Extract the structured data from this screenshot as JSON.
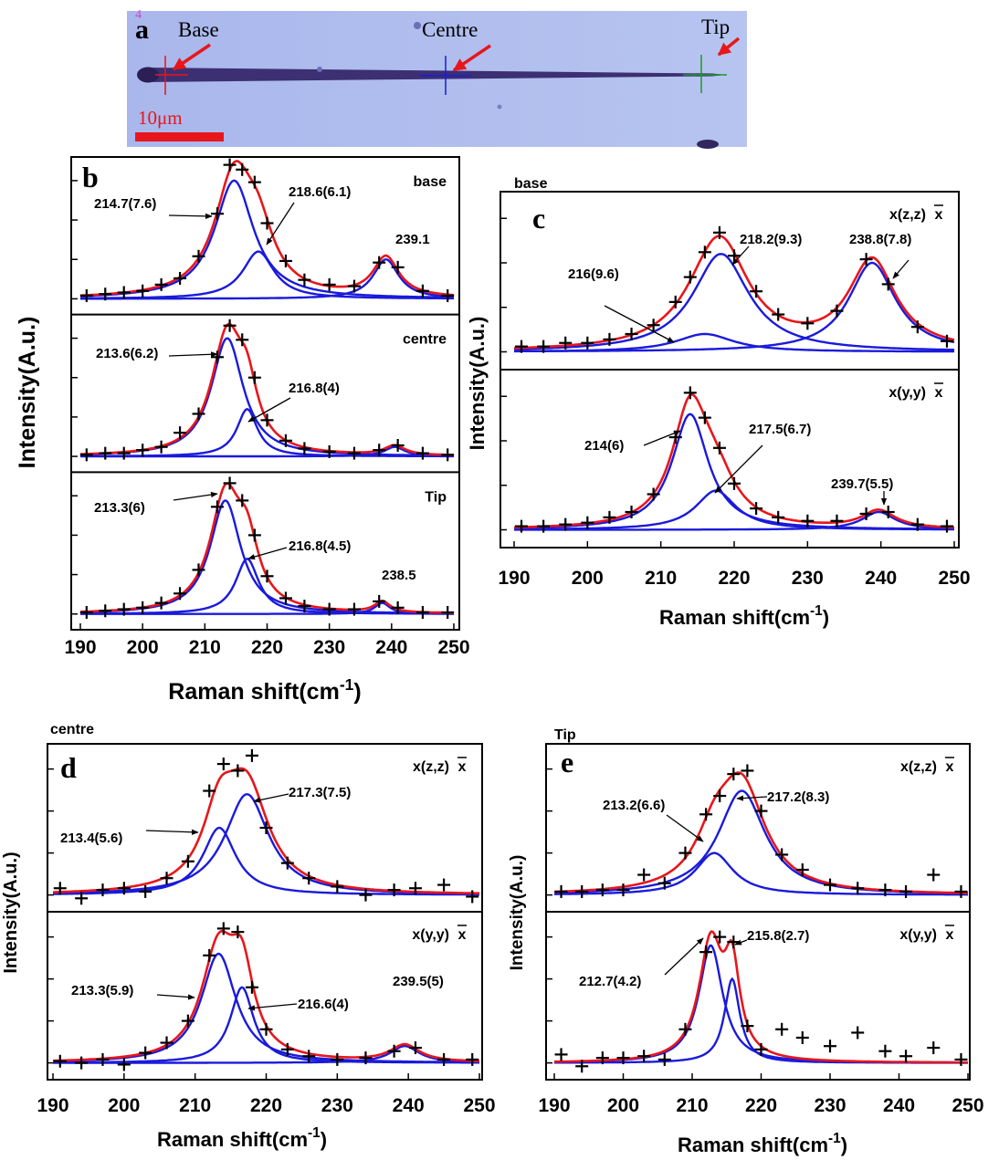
{
  "panel_a": {
    "label": "a",
    "mark": "4",
    "markers": [
      "Base",
      "Centre",
      "Tip"
    ],
    "scale_bar": "10μm"
  },
  "chart_data": [
    {
      "type": "line",
      "panel_label": "b",
      "ylabel": "Intensity(A.u.)",
      "xlabel": "Raman shift(cm",
      "xlabel_sup": "-1",
      "xlabel_end": ")",
      "xlim": [
        190,
        250
      ],
      "xticks": [
        190,
        200,
        210,
        220,
        230,
        240,
        250
      ],
      "ylim": [
        0,
        1
      ],
      "yticks": [
        0.1,
        0.35,
        0.6,
        0.85
      ],
      "fit_color": "#e8161b",
      "component_color": "#1a1adc",
      "point_color": "#000000",
      "subplots": [
        {
          "label": "base",
          "baseline": 0.1,
          "peaks": [
            {
              "label": "214.7(7.6)",
              "center": 214.7,
              "fwhm": 7.6,
              "amp": 0.75
            },
            {
              "label": "218.6(6.1)",
              "center": 218.6,
              "fwhm": 6.1,
              "amp": 0.3
            },
            {
              "label": "239.1",
              "center": 239.1,
              "fwhm": 5,
              "amp": 0.25
            }
          ],
          "points": {
            "x": [
              191,
              194,
              197,
              200,
              203,
              206,
              209,
              212,
              214,
              216,
              218,
              220,
              223,
              226,
              230,
              234,
              238,
              241,
              245,
              249
            ],
            "y": [
              0.12,
              0.13,
              0.14,
              0.15,
              0.19,
              0.23,
              0.37,
              0.64,
              0.95,
              0.92,
              0.84,
              0.58,
              0.34,
              0.22,
              0.19,
              0.18,
              0.33,
              0.3,
              0.15,
              0.12
            ]
          }
        },
        {
          "label": "centre",
          "baseline": 0.1,
          "peaks": [
            {
              "label": "213.6(6.2)",
              "center": 213.6,
              "fwhm": 6.2,
              "amp": 0.75
            },
            {
              "label": "216.8(4)",
              "center": 216.8,
              "fwhm": 4,
              "amp": 0.3
            },
            {
              "center": 240.5,
              "fwhm": 4,
              "amp": 0.06
            }
          ],
          "points": {
            "x": [
              191,
              194,
              197,
              200,
              203,
              206,
              209,
              212,
              214,
              216,
              218,
              220,
              223,
              226,
              230,
              234,
              238,
              241,
              245,
              249
            ],
            "y": [
              0.11,
              0.12,
              0.12,
              0.14,
              0.16,
              0.25,
              0.37,
              0.73,
              0.93,
              0.84,
              0.6,
              0.33,
              0.2,
              0.15,
              0.13,
              0.12,
              0.14,
              0.17,
              0.12,
              0.11
            ]
          }
        },
        {
          "label": "Tip",
          "baseline": 0.1,
          "peaks": [
            {
              "label": "213.3(6)",
              "center": 213.3,
              "fwhm": 6,
              "amp": 0.72
            },
            {
              "label": "216.8(4.5)",
              "center": 216.8,
              "fwhm": 4.5,
              "amp": 0.35
            },
            {
              "label": "238.5",
              "center": 238.5,
              "fwhm": 3,
              "amp": 0.07
            }
          ],
          "points": {
            "x": [
              191,
              194,
              197,
              200,
              203,
              206,
              209,
              212,
              214,
              216,
              218,
              220,
              223,
              226,
              230,
              234,
              238,
              241,
              245,
              249
            ],
            "y": [
              0.11,
              0.12,
              0.13,
              0.14,
              0.17,
              0.23,
              0.38,
              0.78,
              0.93,
              0.82,
              0.6,
              0.34,
              0.2,
              0.15,
              0.13,
              0.13,
              0.18,
              0.14,
              0.11,
              0.11
            ]
          }
        }
      ]
    },
    {
      "type": "line",
      "panel_label": "c",
      "title": "base",
      "ylabel": "Intensity(A.u.)",
      "xlabel": "Raman shift(cm",
      "xlabel_sup": "-1",
      "xlabel_end": ")",
      "xlim": [
        190,
        250
      ],
      "xticks": [
        190,
        200,
        210,
        220,
        230,
        240,
        250
      ],
      "ylim": [
        0,
        1
      ],
      "yticks": [
        0.1,
        0.35,
        0.6,
        0.85
      ],
      "fit_color": "#e8161b",
      "component_color": "#1a1adc",
      "point_color": "#000000",
      "subplots": [
        {
          "label": "x(z,z)",
          "label_bar": "x",
          "baseline": 0.1,
          "peaks": [
            {
              "label": "216(9.6)",
              "center": 216,
              "fwhm": 9.6,
              "amp": 0.1
            },
            {
              "label": "218.2(9.3)",
              "center": 218.2,
              "fwhm": 9.3,
              "amp": 0.55
            },
            {
              "label": "238.8(7.8)",
              "center": 238.8,
              "fwhm": 7.8,
              "amp": 0.5
            }
          ],
          "points": {
            "x": [
              191,
              194,
              197,
              200,
              203,
              206,
              209,
              212,
              214,
              216,
              218,
              220,
              223,
              226,
              230,
              234,
              238,
              241,
              245,
              249
            ],
            "y": [
              0.13,
              0.13,
              0.15,
              0.15,
              0.17,
              0.2,
              0.25,
              0.38,
              0.52,
              0.66,
              0.77,
              0.64,
              0.44,
              0.31,
              0.26,
              0.33,
              0.62,
              0.48,
              0.24,
              0.16
            ]
          }
        },
        {
          "label": "x(y,y)",
          "label_bar": "x",
          "baseline": 0.1,
          "peaks": [
            {
              "label": "214(6)",
              "center": 214,
              "fwhm": 6,
              "amp": 0.65
            },
            {
              "label": "217.5(6.7)",
              "center": 217.5,
              "fwhm": 6.7,
              "amp": 0.22
            },
            {
              "label": "239.7(5.5)",
              "center": 239.7,
              "fwhm": 5.5,
              "amp": 0.1
            }
          ],
          "points": {
            "x": [
              191,
              194,
              197,
              200,
              203,
              206,
              209,
              212,
              214,
              216,
              218,
              220,
              223,
              226,
              230,
              234,
              238,
              241,
              245,
              249
            ],
            "y": [
              0.12,
              0.12,
              0.13,
              0.14,
              0.17,
              0.2,
              0.3,
              0.62,
              0.87,
              0.73,
              0.56,
              0.36,
              0.22,
              0.17,
              0.15,
              0.15,
              0.19,
              0.2,
              0.13,
              0.12
            ]
          }
        }
      ]
    },
    {
      "type": "line",
      "panel_label": "d",
      "title": "centre",
      "ylabel": "Intensity(A.u.)",
      "xlabel": "Raman shift(cm",
      "xlabel_sup": "-1",
      "xlabel_end": ")",
      "xlim": [
        190,
        250
      ],
      "xticks": [
        190,
        200,
        210,
        220,
        230,
        240,
        250
      ],
      "ylim": [
        0,
        1
      ],
      "yticks": [
        0.1,
        0.35,
        0.6,
        0.85
      ],
      "fit_color": "#e8161b",
      "component_color": "#1a1adc",
      "point_color": "#000000",
      "subplots": [
        {
          "label": "x(z,z)",
          "label_bar": "x",
          "baseline": 0.1,
          "peaks": [
            {
              "label": "213.4(5.6)",
              "center": 213.4,
              "fwhm": 5.6,
              "amp": 0.4
            },
            {
              "label": "217.3(7.5)",
              "center": 217.3,
              "fwhm": 7.5,
              "amp": 0.6
            }
          ],
          "points": {
            "x": [
              191,
              194,
              197,
              200,
              203,
              206,
              209,
              212,
              214,
              216,
              218,
              220,
              223,
              226,
              230,
              234,
              238,
              241,
              245,
              249
            ],
            "y": [
              0.14,
              0.08,
              0.13,
              0.14,
              0.12,
              0.2,
              0.3,
              0.72,
              0.88,
              0.84,
              0.93,
              0.5,
              0.29,
              0.2,
              0.15,
              0.1,
              0.13,
              0.14,
              0.16,
              0.09
            ]
          }
        },
        {
          "label": "x(y,y)",
          "label_bar": "x",
          "baseline": 0.1,
          "peaks": [
            {
              "label": "213.3(5.9)",
              "center": 213.3,
              "fwhm": 5.9,
              "amp": 0.65
            },
            {
              "label": "216.6(4)",
              "center": 216.6,
              "fwhm": 4,
              "amp": 0.45
            },
            {
              "label": "239.5(5)",
              "center": 239.5,
              "fwhm": 5,
              "amp": 0.1
            }
          ],
          "points": {
            "x": [
              191,
              194,
              197,
              200,
              203,
              206,
              209,
              212,
              214,
              216,
              218,
              220,
              223,
              226,
              230,
              234,
              238,
              241,
              245,
              249
            ],
            "y": [
              0.11,
              0.1,
              0.12,
              0.09,
              0.16,
              0.22,
              0.35,
              0.74,
              0.9,
              0.88,
              0.55,
              0.3,
              0.18,
              0.14,
              0.12,
              0.13,
              0.17,
              0.19,
              0.12,
              0.12
            ]
          }
        }
      ]
    },
    {
      "type": "line",
      "panel_label": "e",
      "title": "Tip",
      "ylabel": "Intensity(A.u.)",
      "xlabel": "Raman shift(cm",
      "xlabel_sup": "-1",
      "xlabel_end": ")",
      "xlim": [
        190,
        250
      ],
      "xticks": [
        190,
        200,
        210,
        220,
        230,
        240,
        250
      ],
      "ylim": [
        0,
        1
      ],
      "yticks": [
        0.1,
        0.35,
        0.6,
        0.85
      ],
      "fit_color": "#e8161b",
      "component_color": "#1a1adc",
      "point_color": "#000000",
      "subplots": [
        {
          "label": "x(z,z)",
          "label_bar": "x",
          "baseline": 0.1,
          "peaks": [
            {
              "label": "213.2(6.6)",
              "center": 213.2,
              "fwhm": 6.6,
              "amp": 0.25
            },
            {
              "label": "217.2(8.3)",
              "center": 217.2,
              "fwhm": 8.3,
              "amp": 0.62
            }
          ],
          "points": {
            "x": [
              191,
              194,
              197,
              200,
              203,
              206,
              209,
              212,
              214,
              216,
              218,
              220,
              223,
              226,
              230,
              234,
              238,
              241,
              245,
              249
            ],
            "y": [
              0.12,
              0.12,
              0.13,
              0.13,
              0.22,
              0.17,
              0.35,
              0.58,
              0.69,
              0.82,
              0.84,
              0.6,
              0.34,
              0.25,
              0.16,
              0.14,
              0.13,
              0.12,
              0.22,
              0.12
            ]
          }
        },
        {
          "label": "x(y,y)",
          "label_bar": "x",
          "baseline": 0.1,
          "peaks": [
            {
              "label": "212.7(4.2)",
              "center": 212.7,
              "fwhm": 4.2,
              "amp": 0.7
            },
            {
              "label": "215.8(2.7)",
              "center": 215.8,
              "fwhm": 2.7,
              "amp": 0.5
            }
          ],
          "points": {
            "x": [
              191,
              194,
              197,
              200,
              203,
              206,
              209,
              212,
              214,
              216,
              218,
              220,
              223,
              226,
              230,
              234,
              238,
              241,
              245,
              249
            ],
            "y": [
              0.15,
              0.08,
              0.13,
              0.13,
              0.14,
              0.12,
              0.3,
              0.76,
              0.85,
              0.82,
              0.32,
              0.18,
              0.3,
              0.25,
              0.2,
              0.28,
              0.17,
              0.14,
              0.19,
              0.12
            ]
          }
        }
      ]
    }
  ]
}
